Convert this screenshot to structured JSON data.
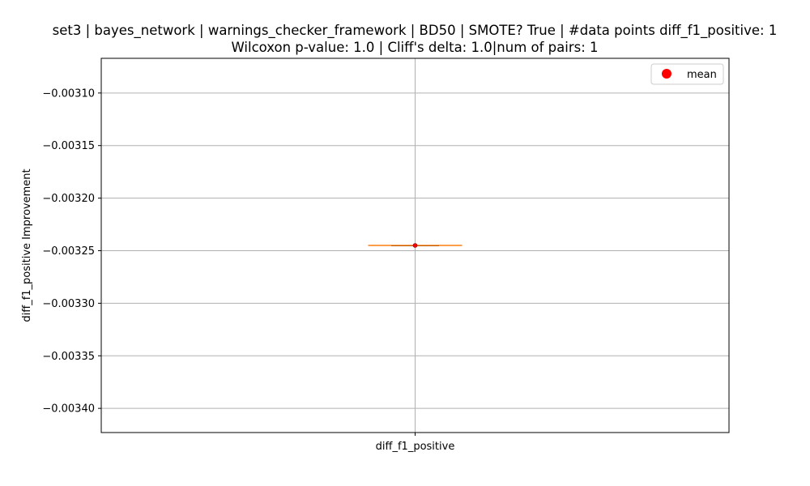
{
  "chart_data": {
    "type": "box",
    "title_line1": "set3 | bayes_network | warnings_checker_framework | BD50 | SMOTE? True | #data points diff_f1_positive: 1",
    "title_line2": "Wilcoxon p-value: 1.0 | Cliff's delta: 1.0|num of pairs: 1",
    "xlabel": "",
    "ylabel": "diff_f1_positive Improvement",
    "categories": [
      "diff_f1_positive"
    ],
    "box": {
      "min": -0.003245,
      "q1": -0.003245,
      "median": -0.003245,
      "q3": -0.003245,
      "max": -0.003245,
      "mean": -0.003245
    },
    "ylim": [
      -0.003423,
      -0.003067
    ],
    "yticks": [
      -0.0031,
      -0.00315,
      -0.0032,
      -0.00325,
      -0.0033,
      -0.00335,
      -0.0034
    ],
    "ytick_labels": [
      "−0.00310",
      "−0.00315",
      "−0.00320",
      "−0.00325",
      "−0.00330",
      "−0.00335",
      "−0.00340"
    ],
    "grid": true,
    "legend": {
      "position": "top-right",
      "entries": [
        {
          "label": "mean",
          "color": "#ff0000",
          "marker": "circle"
        }
      ]
    },
    "colors": {
      "box": "#000000",
      "median": "#ff7f0e",
      "mean": "#ff0000",
      "grid": "#b0b0b0"
    }
  }
}
